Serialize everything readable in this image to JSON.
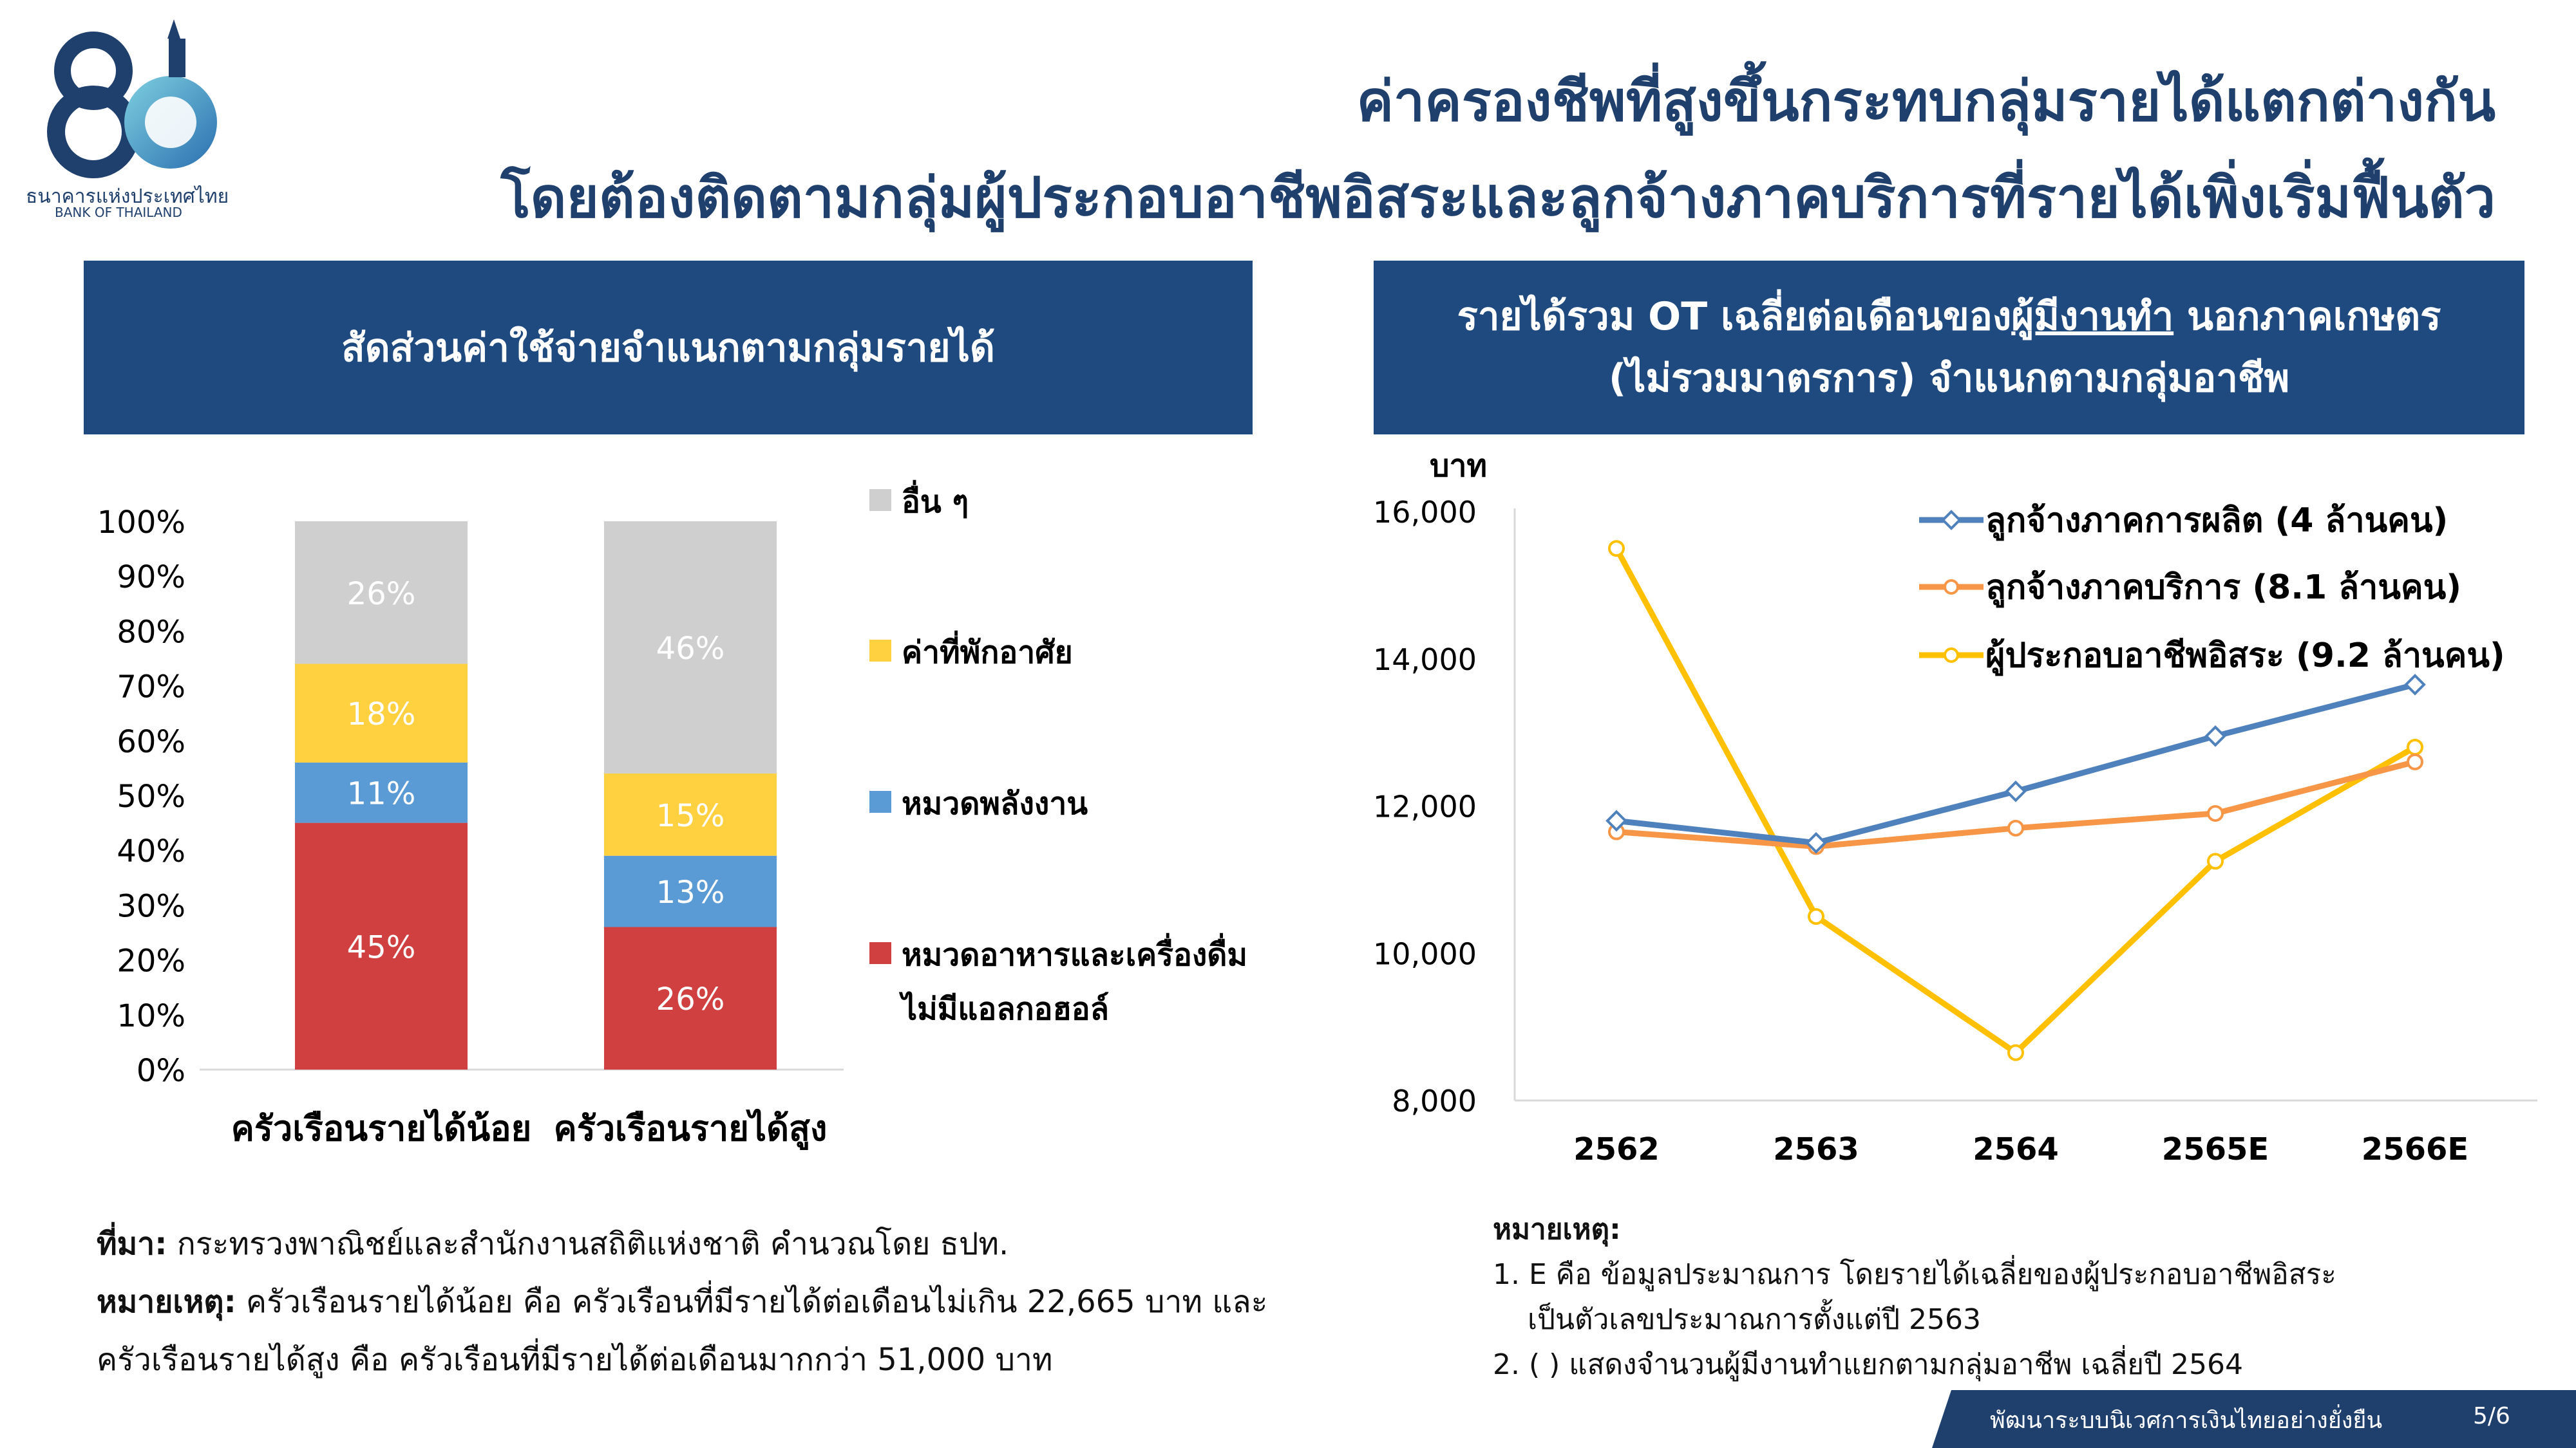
{
  "header": {
    "title_line1": "ค่าครองชีพที่สูงขึ้นกระทบกลุ่มรายได้แตกต่างกัน",
    "title_line2": "โดยต้องติดตามกลุ่มผู้ประกอบอาชีพอิสระและลูกจ้างภาคบริการที่รายได้เพิ่งเริ่มฟื้นตัว"
  },
  "logo": {
    "number": "80",
    "name_th": "ธนาคารแห่งประเทศไทย",
    "name_en": "BANK OF THAILAND"
  },
  "left_panel": {
    "header": "สัดส่วนค่าใช้จ่ายจำแนกตามกลุ่มรายได้"
  },
  "right_panel": {
    "header_line1_pre": "รายได้รวม OT เฉลี่ยต่อเดือนของ",
    "header_line1_underlined": "ผู้มีงานทำ",
    "header_line1_post": " นอกภาคเกษตร",
    "header_line2": "(ไม่รวมมาตรการ) จำแนกตามกลุ่มอาชีพ"
  },
  "chart_data": [
    {
      "type": "bar",
      "stacked": true,
      "categories": [
        "ครัวเรือนรายได้น้อย",
        "ครัวเรือนรายได้สูง"
      ],
      "series": [
        {
          "name": "หมวดอาหารและเครื่องดื่มไม่มีแอลกอฮอล์",
          "name_lines": [
            "หมวดอาหารและเครื่องดื่ม",
            "ไม่มีแอลกอฮอล์"
          ],
          "values": [
            45,
            26
          ],
          "labels": [
            "45%",
            "26%"
          ],
          "color": "#d04040",
          "label_color": "#ffffff"
        },
        {
          "name": "หมวดพลังงาน",
          "name_lines": [
            "หมวดพลังงาน"
          ],
          "values": [
            11,
            13
          ],
          "labels": [
            "11%",
            "13%"
          ],
          "color": "#5b9bd5",
          "label_color": "#ffffff"
        },
        {
          "name": "ค่าที่พักอาศัย",
          "name_lines": [
            "ค่าที่พักอาศัย"
          ],
          "values": [
            18,
            15
          ],
          "labels": [
            "18%",
            "15%"
          ],
          "color": "#ffd040",
          "label_color": "#ffffff"
        },
        {
          "name": "อื่น ๆ",
          "name_lines": [
            "อื่น ๆ"
          ],
          "values": [
            26,
            46
          ],
          "labels": [
            "26%",
            "46%"
          ],
          "color": "#cfcfcf",
          "label_color": "#ffffff"
        }
      ],
      "ylim": [
        0,
        100
      ],
      "yticks": [
        "0%",
        "10%",
        "20%",
        "30%",
        "40%",
        "50%",
        "60%",
        "70%",
        "80%",
        "90%",
        "100%"
      ],
      "legend_position": "right"
    },
    {
      "type": "line",
      "x": [
        "2562",
        "2563",
        "2564",
        "2565E",
        "2566E"
      ],
      "ylabel": "บาท",
      "ylim": [
        8000,
        16000
      ],
      "yticks": [
        "8,000",
        "10,000",
        "12,000",
        "14,000",
        "16,000"
      ],
      "series": [
        {
          "name": "ลูกจ้างภาคการผลิต (4 ล้านคน)",
          "values": [
            11800,
            11500,
            12200,
            12950,
            13650
          ],
          "color": "#4f81bd",
          "marker": "diamond"
        },
        {
          "name": "ลูกจ้างภาคบริการ (8.1 ล้านคน)",
          "values": [
            11650,
            11450,
            11700,
            11900,
            12600
          ],
          "color": "#f79646",
          "marker": "circle"
        },
        {
          "name": "ผู้ประกอบอาชีพอิสระ (9.2 ล้านคน)",
          "values": [
            15500,
            10500,
            8650,
            11250,
            12800
          ],
          "color": "#ffc000",
          "marker": "circle"
        }
      ],
      "legend_position": "top-right",
      "grid": false
    }
  ],
  "source_note": {
    "source_label": "ที่มา:",
    "source_text": " กระทรวงพาณิชย์และสำนักงานสถิติแห่งชาติ คำนวณโดย ธปท.",
    "remark_label": "หมายเหตุ:",
    "remark_text_line1": " ครัวเรือนรายได้น้อย คือ ครัวเรือนที่มีรายได้ต่อเดือนไม่เกิน 22,665 บาท และ",
    "remark_text_line2": "ครัวเรือนรายได้สูง คือ ครัวเรือนที่มีรายได้ต่อเดือนมากกว่า 51,000 บาท"
  },
  "right_note": {
    "label": "หมายเหตุ:",
    "item1_line1": "1. E คือ ข้อมูลประมาณการ โดยรายได้เฉลี่ยของผู้ประกอบอาชีพอิสระ",
    "item1_line2": "เป็นตัวเลขประมาณการตั้งแต่ปี 2563",
    "item2": "2. ( ) แสดงจำนวนผู้มีงานทำแยกตามกลุ่มอาชีพ เฉลี่ยปี 2564"
  },
  "footer": {
    "slogan": "พัฒนาระบบนิเวศการเงินไทยอย่างยั่งยืน",
    "page": "5/6",
    "bar_color": "#1f3f6d"
  }
}
